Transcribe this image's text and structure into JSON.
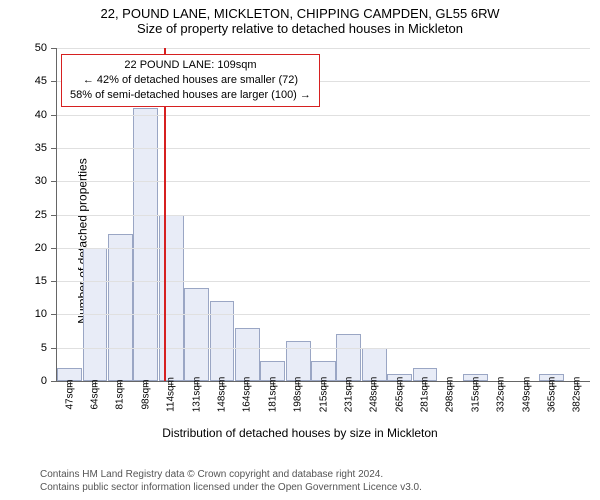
{
  "title": "22, POUND LANE, MICKLETON, CHIPPING CAMPDEN, GL55 6RW",
  "subtitle": "Size of property relative to detached houses in Mickleton",
  "y_label": "Number of detached properties",
  "x_label": "Distribution of detached houses by size in Mickleton",
  "footer1": "Contains HM Land Registry data © Crown copyright and database right 2024.",
  "footer2": "Contains public sector information licensed under the Open Government Licence v3.0.",
  "callout": {
    "line1": "22 POUND LANE: 109sqm",
    "line2": "← 42% of detached houses are smaller (72)",
    "line3": "58% of semi-detached houses are larger (100) →"
  },
  "chart": {
    "type": "histogram",
    "ylim": [
      0,
      50
    ],
    "ytick_step": 5,
    "bar_fill": "#e8ecf7",
    "bar_stroke": "#9aa6c4",
    "ref_color": "#d62020",
    "grid_color": "#e0e0e0",
    "ref_value": 109,
    "x_ticks": [
      47,
      64,
      81,
      98,
      114,
      131,
      148,
      164,
      181,
      198,
      215,
      231,
      248,
      265,
      281,
      298,
      315,
      332,
      349,
      365,
      382
    ],
    "x_unit": "sqm",
    "categories": [
      47,
      64,
      81,
      98,
      114,
      131,
      148,
      164,
      181,
      198,
      215,
      231,
      248,
      265,
      281,
      298,
      315,
      332,
      349,
      365,
      382
    ],
    "values": [
      2,
      20,
      22,
      41,
      25,
      14,
      12,
      8,
      3,
      6,
      3,
      7,
      5,
      1,
      2,
      0,
      1,
      0,
      0,
      1,
      0
    ]
  }
}
